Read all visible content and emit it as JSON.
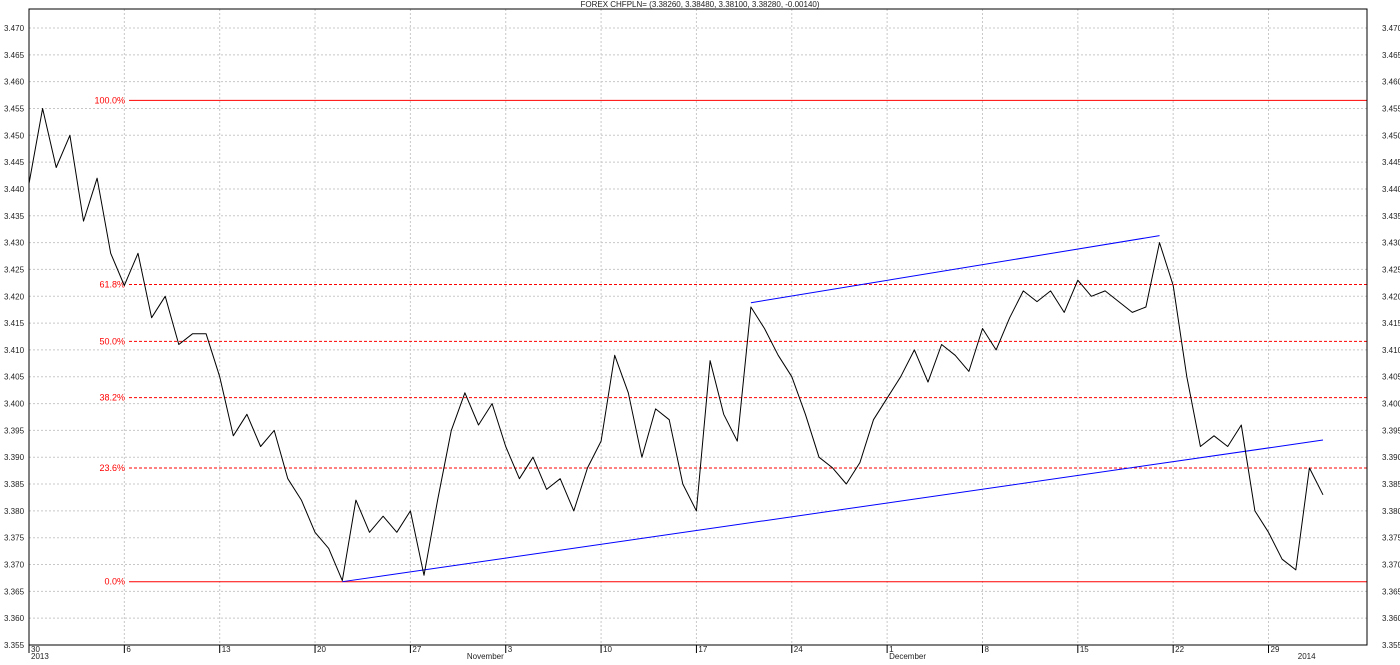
{
  "chart_data": {
    "type": "line",
    "title": "FOREX CHFPLN= (3.38260, 3.38480, 3.38100, 3.38280, -0.00140)",
    "ylim": [
      3.355,
      3.47
    ],
    "y_ticks": [
      "3.355",
      "3.360",
      "3.365",
      "3.370",
      "3.375",
      "3.380",
      "3.385",
      "3.390",
      "3.395",
      "3.400",
      "3.405",
      "3.410",
      "3.415",
      "3.420",
      "3.425",
      "3.430",
      "3.435",
      "3.440",
      "3.445",
      "3.450",
      "3.455",
      "3.460",
      "3.465",
      "3.470"
    ],
    "x_range": [
      "2013-09-30",
      "2014-01-03"
    ],
    "x_ticks": [
      {
        "label": "30",
        "date": "2013-09-30"
      },
      {
        "label": "6",
        "date": "2013-10-07"
      },
      {
        "label": "13",
        "date": "2013-10-14"
      },
      {
        "label": "20",
        "date": "2013-10-21"
      },
      {
        "label": "27",
        "date": "2013-10-28"
      },
      {
        "label": "3",
        "date": "2013-11-04"
      },
      {
        "label": "10",
        "date": "2013-11-11"
      },
      {
        "label": "17",
        "date": "2013-11-18"
      },
      {
        "label": "24",
        "date": "2013-11-25"
      },
      {
        "label": "1",
        "date": "2013-12-02"
      },
      {
        "label": "8",
        "date": "2013-12-09"
      },
      {
        "label": "15",
        "date": "2013-12-16"
      },
      {
        "label": "22",
        "date": "2013-12-23"
      },
      {
        "label": "29",
        "date": "2013-12-30"
      }
    ],
    "x_group_labels": [
      {
        "label": "2013",
        "date": "2013-09-30"
      },
      {
        "label": "November",
        "date": "2013-11-01"
      },
      {
        "label": "December",
        "date": "2013-12-02"
      },
      {
        "label": "2014",
        "date": "2014-01-01"
      }
    ],
    "grid": true,
    "series": [
      {
        "color": "#000000",
        "points": [
          [
            "2013-09-30",
            3.441
          ],
          [
            "2013-10-01",
            3.455
          ],
          [
            "2013-10-02",
            3.444
          ],
          [
            "2013-10-03",
            3.45
          ],
          [
            "2013-10-04",
            3.434
          ],
          [
            "2013-10-05",
            3.442
          ],
          [
            "2013-10-06",
            3.428
          ],
          [
            "2013-10-07",
            3.422
          ],
          [
            "2013-10-08",
            3.428
          ],
          [
            "2013-10-09",
            3.416
          ],
          [
            "2013-10-10",
            3.42
          ],
          [
            "2013-10-11",
            3.411
          ],
          [
            "2013-10-12",
            3.413
          ],
          [
            "2013-10-13",
            3.413
          ],
          [
            "2013-10-14",
            3.405
          ],
          [
            "2013-10-15",
            3.394
          ],
          [
            "2013-10-16",
            3.398
          ],
          [
            "2013-10-17",
            3.392
          ],
          [
            "2013-10-18",
            3.395
          ],
          [
            "2013-10-19",
            3.386
          ],
          [
            "2013-10-20",
            3.382
          ],
          [
            "2013-10-21",
            3.376
          ],
          [
            "2013-10-22",
            3.373
          ],
          [
            "2013-10-23",
            3.367
          ],
          [
            "2013-10-24",
            3.382
          ],
          [
            "2013-10-25",
            3.376
          ],
          [
            "2013-10-26",
            3.379
          ],
          [
            "2013-10-27",
            3.376
          ],
          [
            "2013-10-28",
            3.38
          ],
          [
            "2013-10-29",
            3.368
          ],
          [
            "2013-10-30",
            3.382
          ],
          [
            "2013-10-31",
            3.395
          ],
          [
            "2013-11-01",
            3.402
          ],
          [
            "2013-11-02",
            3.396
          ],
          [
            "2013-11-03",
            3.4
          ],
          [
            "2013-11-04",
            3.392
          ],
          [
            "2013-11-05",
            3.386
          ],
          [
            "2013-11-06",
            3.39
          ],
          [
            "2013-11-07",
            3.384
          ],
          [
            "2013-11-08",
            3.386
          ],
          [
            "2013-11-09",
            3.38
          ],
          [
            "2013-11-10",
            3.388
          ],
          [
            "2013-11-11",
            3.393
          ],
          [
            "2013-11-12",
            3.409
          ],
          [
            "2013-11-13",
            3.402
          ],
          [
            "2013-11-14",
            3.39
          ],
          [
            "2013-11-15",
            3.399
          ],
          [
            "2013-11-16",
            3.397
          ],
          [
            "2013-11-17",
            3.385
          ],
          [
            "2013-11-18",
            3.38
          ],
          [
            "2013-11-19",
            3.408
          ],
          [
            "2013-11-20",
            3.398
          ],
          [
            "2013-11-21",
            3.393
          ],
          [
            "2013-11-22",
            3.418
          ],
          [
            "2013-11-23",
            3.414
          ],
          [
            "2013-11-24",
            3.409
          ],
          [
            "2013-11-25",
            3.405
          ],
          [
            "2013-11-26",
            3.398
          ],
          [
            "2013-11-27",
            3.39
          ],
          [
            "2013-11-28",
            3.388
          ],
          [
            "2013-11-29",
            3.385
          ],
          [
            "2013-11-30",
            3.389
          ],
          [
            "2013-12-01",
            3.397
          ],
          [
            "2013-12-02",
            3.401
          ],
          [
            "2013-12-03",
            3.405
          ],
          [
            "2013-12-04",
            3.41
          ],
          [
            "2013-12-05",
            3.404
          ],
          [
            "2013-12-06",
            3.411
          ],
          [
            "2013-12-07",
            3.409
          ],
          [
            "2013-12-08",
            3.406
          ],
          [
            "2013-12-09",
            3.414
          ],
          [
            "2013-12-10",
            3.41
          ],
          [
            "2013-12-11",
            3.416
          ],
          [
            "2013-12-12",
            3.421
          ],
          [
            "2013-12-13",
            3.419
          ],
          [
            "2013-12-14",
            3.421
          ],
          [
            "2013-12-15",
            3.417
          ],
          [
            "2013-12-16",
            3.423
          ],
          [
            "2013-12-17",
            3.42
          ],
          [
            "2013-12-18",
            3.421
          ],
          [
            "2013-12-19",
            3.419
          ],
          [
            "2013-12-20",
            3.417
          ],
          [
            "2013-12-21",
            3.418
          ],
          [
            "2013-12-22",
            3.43
          ],
          [
            "2013-12-23",
            3.422
          ],
          [
            "2013-12-24",
            3.405
          ],
          [
            "2013-12-25",
            3.392
          ],
          [
            "2013-12-26",
            3.394
          ],
          [
            "2013-12-27",
            3.392
          ],
          [
            "2013-12-28",
            3.396
          ],
          [
            "2013-12-29",
            3.38
          ],
          [
            "2013-12-30",
            3.376
          ],
          [
            "2013-12-31",
            3.371
          ],
          [
            "2014-01-01",
            3.369
          ],
          [
            "2014-01-02",
            3.388
          ],
          [
            "2014-01-03",
            3.383
          ]
        ]
      }
    ],
    "fibonacci": [
      {
        "label": "100.0%",
        "value": 3.4565
      },
      {
        "label": "61.8%",
        "value": 3.4222
      },
      {
        "label": "50.0%",
        "value": 3.4116
      },
      {
        "label": "38.2%",
        "value": 3.4011
      },
      {
        "label": "23.6%",
        "value": 3.388
      },
      {
        "label": "0.0%",
        "value": 3.3668
      }
    ],
    "trendlines": [
      {
        "color": "#0000ff",
        "from": [
          "2013-10-23",
          3.3668
        ],
        "to": [
          "2014-01-03",
          3.3932
        ]
      },
      {
        "color": "#0000ff",
        "from": [
          "2013-11-22",
          3.4188
        ],
        "to": [
          "2013-12-22",
          3.4313
        ]
      }
    ],
    "colors": {
      "fib": "#ff0000",
      "trend": "#0000ff",
      "price": "#000000",
      "grid": "#c8c8c8"
    }
  }
}
